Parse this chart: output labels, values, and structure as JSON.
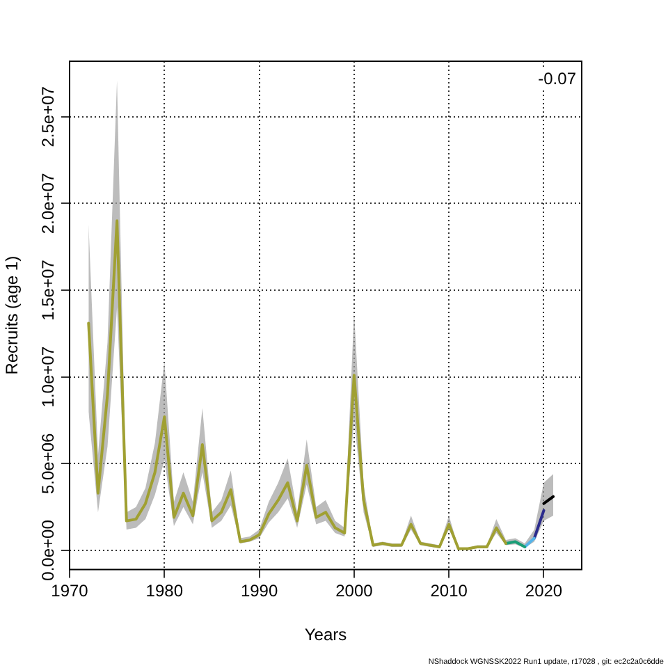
{
  "chart_data": {
    "type": "line",
    "xlabel": "Years",
    "ylabel": "Recruits (age 1)",
    "x": [
      1972,
      1973,
      1974,
      1975,
      1976,
      1977,
      1978,
      1979,
      1980,
      1981,
      1982,
      1983,
      1984,
      1985,
      1986,
      1987,
      1988,
      1989,
      1990,
      1991,
      1992,
      1993,
      1994,
      1995,
      1996,
      1997,
      1998,
      1999,
      2000,
      2001,
      2002,
      2003,
      2004,
      2005,
      2006,
      2007,
      2008,
      2009,
      2010,
      2011,
      2012,
      2013,
      2014,
      2015,
      2016,
      2017,
      2018,
      2019,
      2020,
      2021
    ],
    "series": [
      {
        "color": "#000000",
        "values": [
          null,
          null,
          null,
          null,
          null,
          null,
          null,
          null,
          null,
          null,
          null,
          null,
          null,
          null,
          null,
          null,
          null,
          null,
          null,
          null,
          null,
          null,
          null,
          null,
          null,
          null,
          null,
          null,
          null,
          null,
          null,
          null,
          null,
          null,
          null,
          null,
          null,
          null,
          null,
          null,
          null,
          null,
          null,
          null,
          null,
          null,
          null,
          null,
          2700000.0,
          3100000.0
        ],
        "lower": [
          8000000.0,
          2200000.0,
          6000000.0,
          14000000.0,
          1200000.0,
          1300000.0,
          1800000.0,
          3200000.0,
          5200000.0,
          1400000.0,
          2500000.0,
          1500000.0,
          4500000.0,
          1300000.0,
          1700000.0,
          2600000.0,
          400000.0,
          500000.0,
          700000.0,
          1600000.0,
          2200000.0,
          3000000.0,
          1300000.0,
          3800000.0,
          1500000.0,
          1700000.0,
          1000000.0,
          800000.0,
          7600000.0,
          2200000.0,
          200000.0,
          300000.0,
          200000.0,
          200000.0,
          1200000.0,
          300000.0,
          200000.0,
          150000.0,
          1200000.0,
          80000.0,
          80000.0,
          150000.0,
          150000.0,
          1000000.0,
          300000.0,
          350000.0,
          150000.0,
          500000.0,
          1700000.0,
          2000000.0
        ],
        "upper": [
          18800000.0,
          5500000.0,
          12000000.0,
          27100000.0,
          2200000.0,
          2500000.0,
          3600000.0,
          6200000.0,
          10900000.0,
          2800000.0,
          4500000.0,
          2800000.0,
          8200000.0,
          2200000.0,
          2900000.0,
          4600000.0,
          700000.0,
          800000.0,
          1200000.0,
          2800000.0,
          3900000.0,
          5300000.0,
          2200000.0,
          6400000.0,
          2500000.0,
          2900000.0,
          1700000.0,
          1300000.0,
          13700000.0,
          3800000.0,
          400000.0,
          500000.0,
          400000.0,
          400000.0,
          2000000.0,
          500000.0,
          400000.0,
          300000.0,
          2000000.0,
          150000.0,
          150000.0,
          300000.0,
          300000.0,
          1800000.0,
          600000.0,
          700000.0,
          400000.0,
          1200000.0,
          3900000.0,
          4400000.0
        ]
      },
      {
        "color": "#2b2b8c",
        "values": [
          null,
          null,
          null,
          null,
          null,
          null,
          null,
          null,
          null,
          null,
          null,
          null,
          null,
          null,
          null,
          null,
          null,
          null,
          null,
          null,
          null,
          null,
          null,
          null,
          null,
          null,
          null,
          null,
          null,
          null,
          null,
          null,
          null,
          null,
          null,
          null,
          null,
          null,
          null,
          null,
          null,
          null,
          null,
          null,
          null,
          null,
          null,
          700000.0,
          2300000.0,
          null
        ]
      },
      {
        "color": "#56b4e9",
        "values": [
          null,
          null,
          null,
          null,
          null,
          null,
          null,
          null,
          null,
          null,
          null,
          null,
          null,
          null,
          null,
          null,
          null,
          null,
          null,
          null,
          null,
          null,
          null,
          null,
          null,
          null,
          null,
          null,
          null,
          null,
          null,
          null,
          null,
          null,
          null,
          null,
          null,
          null,
          null,
          null,
          null,
          null,
          null,
          null,
          null,
          null,
          200000.0,
          700000.0,
          null,
          null
        ]
      },
      {
        "color": "#1a9e77",
        "values": [
          null,
          null,
          null,
          null,
          null,
          null,
          null,
          null,
          null,
          null,
          null,
          null,
          null,
          null,
          null,
          null,
          null,
          null,
          null,
          null,
          null,
          null,
          null,
          null,
          null,
          null,
          null,
          null,
          null,
          null,
          null,
          null,
          null,
          null,
          null,
          null,
          null,
          null,
          null,
          null,
          null,
          null,
          null,
          null,
          400000.0,
          500000.0,
          200000.0,
          null,
          null,
          null
        ]
      },
      {
        "color": "#a0a032",
        "values": [
          13100000.0,
          3300000.0,
          9000000.0,
          19000000.0,
          1700000.0,
          1800000.0,
          2700000.0,
          4500000.0,
          7700000.0,
          1900000.0,
          3300000.0,
          2000000.0,
          6100000.0,
          1700000.0,
          2200000.0,
          3500000.0,
          500000.0,
          600000.0,
          900000.0,
          2100000.0,
          2900000.0,
          3900000.0,
          1700000.0,
          4900000.0,
          1900000.0,
          2200000.0,
          1300000.0,
          1000000.0,
          10100000.0,
          2900000.0,
          300000.0,
          400000.0,
          300000.0,
          300000.0,
          1500000.0,
          400000.0,
          300000.0,
          200000.0,
          1500000.0,
          100000.0,
          100000.0,
          200000.0,
          200000.0,
          1300000.0,
          400000.0,
          null,
          null,
          null,
          null,
          null
        ]
      }
    ],
    "xlim": [
      1970,
      2024
    ],
    "xticks": [
      1970,
      1980,
      1990,
      2000,
      2010,
      2020
    ],
    "ylim": [
      -1100000,
      28200000
    ],
    "yticks": [
      {
        "value": 0,
        "label": "0.0e+00"
      },
      {
        "value": 5000000,
        "label": "5.0e+06"
      },
      {
        "value": 10000000,
        "label": "1.0e+07"
      },
      {
        "value": 15000000,
        "label": "1.5e+07"
      },
      {
        "value": 20000000,
        "label": "2.0e+07"
      },
      {
        "value": 25000000,
        "label": "2.5e+07"
      }
    ],
    "grid": true,
    "legend": false,
    "marker": "none",
    "line_style": "solid",
    "annotations": [
      "-0.07",
      "NShaddock WGNSSK2022 Run1 update, r17028 , git: ec2c2a0c6dde"
    ]
  }
}
